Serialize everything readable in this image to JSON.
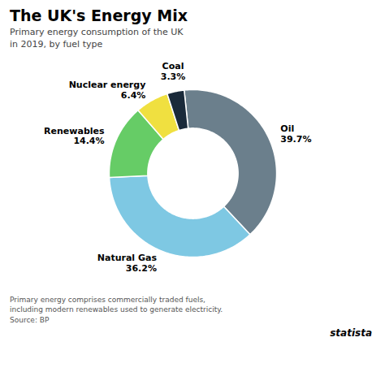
{
  "chart_data": {
    "type": "pie",
    "title": "The UK's Energy Mix",
    "subtitle": "Primary energy consumption of the UK\nin 2019, by fuel type",
    "footnote": "Primary energy comprises commercially traded fuels,\nincluding modern renewables used to generate electricity.\nSource: BP",
    "categories": [
      "Oil",
      "Natural Gas",
      "Renewables",
      "Nuclear energy",
      "Coal"
    ],
    "values": [
      39.7,
      36.2,
      14.4,
      6.4,
      3.3
    ],
    "value_labels": [
      "39.7%",
      "36.2%",
      "14.4%",
      "6.4%",
      "3.3%"
    ],
    "colors": [
      "#6b7f8c",
      "#7ec8e3",
      "#66cc66",
      "#f0e040",
      "#1a2a3a"
    ],
    "data_labels": true,
    "tick_labels": false,
    "annotations": [
      "statista"
    ]
  }
}
